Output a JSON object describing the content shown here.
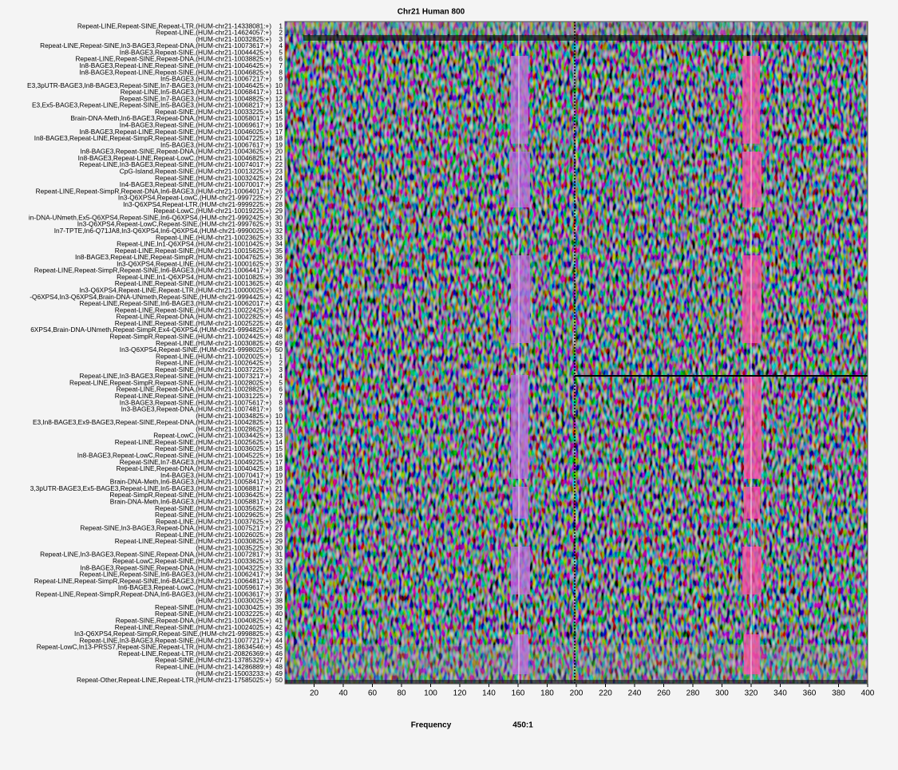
{
  "chart_data": {
    "type": "heatmap",
    "title": "Chr21 Human 800",
    "xlabel": "Frequency",
    "note": "450:1",
    "xlim": [
      0,
      400
    ],
    "xticks": [
      20,
      40,
      60,
      80,
      100,
      120,
      140,
      160,
      180,
      200,
      220,
      240,
      260,
      280,
      300,
      320,
      340,
      360,
      380,
      400
    ],
    "rows": [
      "Repeat-LINE,Repeat-SINE,Repeat-LTR,(HUM-chr21-14338081:+)",
      "Repeat-LINE,(HUM-chr21-14624057:+)",
      "(HUM-chr21-10032825:+)",
      "Repeat-LINE,Repeat-SINE,In3-BAGE3,Repeat-DNA,(HUM-chr21-10073617:+)",
      "In8-BAGE3,Repeat-SINE,(HUM-chr21-10044425:+)",
      "Repeat-LINE,Repeat-SINE,Repeat-DNA,(HUM-chr21-10038825:+)",
      "In8-BAGE3,Repeat-LINE,Repeat-SINE,(HUM-chr21-10046425:+)",
      "In8-BAGE3,Repeat-LINE,Repeat-SINE,(HUM-chr21-10046825:+)",
      "In5-BAGE3,(HUM-chr21-10067217:+)",
      "E3,3pUTR-BAGE3,In8-BAGE3,Repeat-SINE,In7-BAGE3,(HUM-chr21-10046425:+)",
      "Repeat-LINE,In5-BAGE3,(HUM-chr21-10068417:+)",
      "Repeat-SINE,In7-BAGE3,(HUM-chr21-10048825:+)",
      "E3,Ex5-BAGE3,Repeat-LINE,Repeat-SINE,In5-BAGE3,(HUM-chr21-10068217:+)",
      "Repeat-SINE,(HUM-chr21-10033225:+)",
      "Brain-DNA-Meth,In6-BAGE3,Repeat-DNA,(HUM-chr21-10058017:+)",
      "In4-BAGE3,Repeat-SINE,(HUM-chr21-10069617:+)",
      "In8-BAGE3,Repeat-LINE,Repeat-SINE,(HUM-chr21-10046025:+)",
      "In8-BAGE3,Repeat-LINE,Repeat-SimpR,Repeat-SINE,(HUM-chr21-10047225:+)",
      "In5-BAGE3,(HUM-chr21-10067617:+)",
      "In8-BAGE3,Repeat-SINE,Repeat-DNA,(HUM-chr21-10043625:+)",
      "In8-BAGE3,Repeat-LINE,Repeat-LowC,(HUM-chr21-10046825:+)",
      "Repeat-LINE,In3-BAGE3,Repeat-SINE,(HUM-chr21-10074017:+)",
      "CpG-Island,Repeat-SINE,(HUM-chr21-10013225:+)",
      "Repeat-SINE,(HUM-chr21-10032425:+)",
      "In4-BAGE3,Repeat-SINE,(HUM-chr21-10070017:+)",
      "Repeat-LINE,Repeat-SimpR,Repeat-DNA,In6-BAGE3,(HUM-chr21-10064017:+)",
      "In3-Q6XPS4,Repeat-LowC,(HUM-chr21-9997225:+)",
      "In3-Q6XPS4,Repeat-LTR,(HUM-chr21-9999225:+)",
      "Repeat-LowC,(HUM-chr21-10019225:+)",
      "in-DNA-UNmeth,Ex5-Q6XPS4,Repeat-SINE,In6-Q6XPS4,(HUM-chr21-9992425:+)",
      "In3-Q6XPS4,Repeat-LowC,Repeat-SINE,(HUM-chr21-9997625:+)",
      "In7-TPTE,In6-Q71JA8,In3-Q6XPS4,In6-Q6XPS4,(HUM-chr21-9990025:+)",
      "Repeat-LINE,(HUM-chr21-10023625:+)",
      "Repeat-LINE,In1-Q6XPS4,(HUM-chr21-10010425:+)",
      "Repeat-LINE,Repeat-SINE,(HUM-chr21-10015625:+)",
      "In8-BAGE3,Repeat-LINE,Repeat-SimpR,(HUM-chr21-10047625:+)",
      "In3-Q6XPS4,Repeat-LINE,(HUM-chr21-10001625:+)",
      "Repeat-LINE,Repeat-SimpR,Repeat-SINE,In6-BAGE3,(HUM-chr21-10064417:+)",
      "Repeat-LINE,In1-Q6XPS4,(HUM-chr21-10010825:+)",
      "Repeat-LINE,Repeat-SINE,(HUM-chr21-10013625:+)",
      "In3-Q6XPS4,Repeat-LINE,Repeat-LTR,(HUM-chr21-10000025:+)",
      "-Q6XPS4,In3-Q6XPS4,Brain-DNA-UNmeth,Repeat-SINE,(HUM-chr21-9994425:+)",
      "Repeat-LINE,Repeat-SINE,In6-BAGE3,(HUM-chr21-10062017:+)",
      "Repeat-LINE,Repeat-SINE,(HUM-chr21-10022425:+)",
      "Repeat-LINE,Repeat-DNA,(HUM-chr21-10022825:+)",
      "Repeat-LINE,Repeat-SINE,(HUM-chr21-10025225:+)",
      "6XPS4,Brain-DNA-UNmeth,Repeat-SimpR,Ex4-Q6XPS4,(HUM-chr21-9994825:+)",
      "Repeat-SimpR,Repeat-SINE,(HUM-chr21-10024425:+)",
      "Repeat-LINE,(HUM-chr21-10030825:+)",
      "In3-Q6XPS4,Repeat-SINE,(HUM-chr21-9998025:+)",
      "Repeat-LINE,(HUM-chr21-10020025:+)",
      "Repeat-LINE,(HUM-chr21-10026425:+)",
      "Repeat-SINE,(HUM-chr21-10037225:+)",
      "Repeat-LINE,In3-BAGE3,Repeat-SINE,(HUM-chr21-10073217:+)",
      "Repeat-LINE,Repeat-SimpR,Repeat-SINE,(HUM-chr21-10028025:+)",
      "Repeat-LINE,Repeat-DNA,(HUM-chr21-10028825:+)",
      "Repeat-LINE,Repeat-SINE,(HUM-chr21-10031225:+)",
      "In3-BAGE3,Repeat-SINE,(HUM-chr21-10075617:+)",
      "In3-BAGE3,Repeat-DNA,(HUM-chr21-10074817:+)",
      "(HUM-chr21-10034825:+)",
      "E3,In8-BAGE3,Ex9-BAGE3,Repeat-SINE,Repeat-DNA,(HUM-chr21-10042825:+)",
      "(HUM-chr21-10028625:+)",
      "Repeat-LowC,(HUM-chr21-10034425:+)",
      "Repeat-LINE,Repeat-SINE,(HUM-chr21-10025625:+)",
      "Repeat-SINE,(HUM-chr21-10036025:+)",
      "In8-BAGE3,Repeat-LowC,Repeat-SINE,(HUM-chr21-10045225:+)",
      "Repeat-SINE,In7-BAGE3,(HUM-chr21-10049225:+)",
      "Repeat-LINE,Repeat-DNA,(HUM-chr21-10040425:+)",
      "In4-BAGE3,(HUM-chr21-10070417:+)",
      "Brain-DNA-Meth,In6-BAGE3,(HUM-chr21-10058417:+)",
      "3,3pUTR-BAGE3,Ex5-BAGE3,Repeat-LINE,In5-BAGE3,(HUM-chr21-10068817:+)",
      "Repeat-SimpR,Repeat-SINE,(HUM-chr21-10036425:+)",
      "Brain-DNA-Meth,In6-BAGE3,(HUM-chr21-10058817:+)",
      "Repeat-SINE,(HUM-chr21-10035625:+)",
      "Repeat-SINE,(HUM-chr21-10029625:+)",
      "Repeat-LINE,(HUM-chr21-10037625:+)",
      "Repeat-SINE,In3-BAGE3,Repeat-DNA,(HUM-chr21-10075217:+)",
      "Repeat-LINE,(HUM-chr21-10026025:+)",
      "Repeat-LINE,Repeat-SINE,(HUM-chr21-10030825:+)",
      "(HUM-chr21-10035225:+)",
      "Repeat-LINE,In3-BAGE3,Repeat-SINE,Repeat-DNA,(HUM-chr21-10072817:+)",
      "Repeat-LowC,Repeat-SINE,(HUM-chr21-10033625:+)",
      "In8-BAGE3,Repeat-SINE,Repeat-DNA,(HUM-chr21-10043225:+)",
      "Repeat-LINE,Repeat-SINE,In6-BAGE3,(HUM-chr21-10062417:+)",
      "Repeat-LINE,Repeat-SimpR,Repeat-SINE,In6-BAGE3,(HUM-chr21-10064817:+)",
      "In6-BAGE3,Repeat-LowC,(HUM-chr21-10059617:+)",
      "Repeat-LINE,Repeat-SimpR,Repeat-DNA,In6-BAGE3,(HUM-chr21-10063617:+)",
      "(HUM-chr21-10030025:+)",
      "Repeat-SINE,(HUM-chr21-10030425:+)",
      "Repeat-SINE,(HUM-chr21-10032225:+)",
      "Repeat-SINE,Repeat-DNA,(HUM-chr21-10040825:+)",
      "Repeat-LINE,Repeat-SINE,(HUM-chr21-10024025:+)",
      "In3-Q6XPS4,Repeat-SimpR,Repeat-SINE,(HUM-chr21-9998825:+)",
      "Repeat-LINE,In3-BAGE3,Repeat-SINE,(HUM-chr21-10077217:+)",
      "Repeat-LowC,In13-PRSS7,Repeat-SINE,Repeat-LTR,(HUM-chr21-18634546:+)",
      "Repeat-LINE,Repeat-LTR,(HUM-chr21-20826369:+)",
      "Repeat-SINE,(HUM-chr21-13785329:+)",
      "Repeat-LINE,(HUM-chr21-14286889:+)",
      "(HUM-chr21-15003233:+)",
      "Repeat-Other,Repeat-LINE,Repeat-LTR,(HUM-chr21-17585025:+)"
    ],
    "row_numbers": [
      1,
      2,
      3,
      4,
      5,
      6,
      7,
      8,
      9,
      10,
      11,
      12,
      13,
      14,
      15,
      16,
      17,
      18,
      19,
      20,
      21,
      22,
      23,
      24,
      25,
      26,
      27,
      28,
      29,
      30,
      31,
      32,
      33,
      34,
      35,
      36,
      37,
      38,
      39,
      40,
      41,
      42,
      43,
      44,
      45,
      46,
      47,
      48,
      49,
      50,
      1,
      2,
      3,
      4,
      5,
      6,
      7,
      8,
      9,
      10,
      11,
      12,
      13,
      14,
      15,
      16,
      17,
      18,
      19,
      20,
      21,
      22,
      23,
      24,
      25,
      26,
      27,
      28,
      29,
      30,
      31,
      32,
      33,
      34,
      35,
      36,
      37,
      38,
      39,
      40,
      41,
      42,
      43,
      44,
      45,
      46,
      47,
      48,
      49,
      50
    ]
  }
}
